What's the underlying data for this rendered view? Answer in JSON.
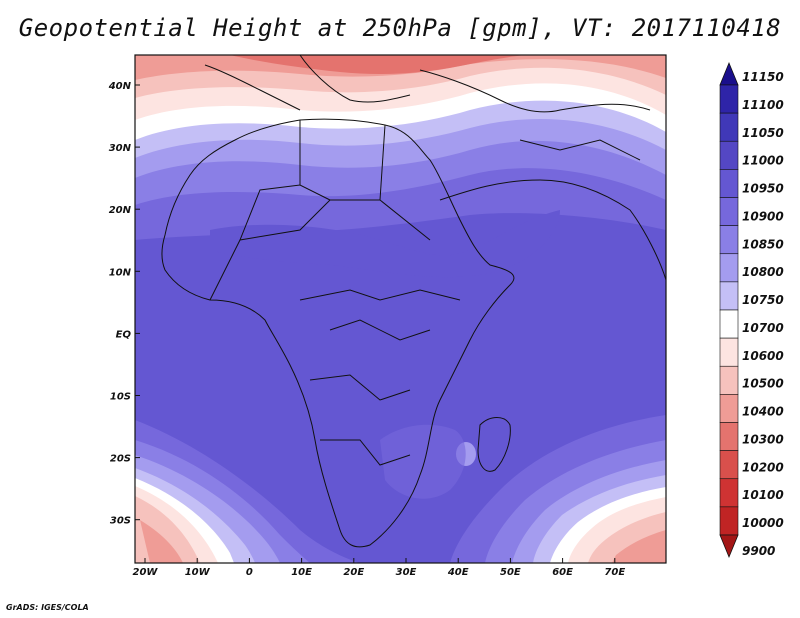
{
  "title": "Geopotential Height at 250hPa [gpm], VT: 2017110418",
  "footer": "GrADS: IGES/COLA",
  "map": {
    "lon_ticks": [
      "20W",
      "10W",
      "0",
      "10E",
      "20E",
      "30E",
      "40E",
      "50E",
      "60E",
      "70E"
    ],
    "lat_ticks": [
      "40N",
      "30N",
      "20N",
      "10N",
      "EQ",
      "10S",
      "20S",
      "30S"
    ],
    "field": "Geopotential Height at 250hPa",
    "units": "gpm",
    "valid_time": "2017110418"
  },
  "colorbar": {
    "levels": [
      "11150",
      "11100",
      "11050",
      "11000",
      "10950",
      "10900",
      "10850",
      "10800",
      "10750",
      "10700",
      "10600",
      "10500",
      "10400",
      "10300",
      "10200",
      "10100",
      "10000",
      "9900"
    ],
    "colors": [
      "#1a0f8c",
      "#2e24a8",
      "#4038b8",
      "#5447c4",
      "#6457d2",
      "#7668dc",
      "#8a7fe6",
      "#a49cef",
      "#c4bff6",
      "#ffffff",
      "#fde4e1",
      "#f6c2bd",
      "#ef9c96",
      "#e4736e",
      "#d9504c",
      "#cf3333",
      "#c02424",
      "#a31616"
    ]
  }
}
